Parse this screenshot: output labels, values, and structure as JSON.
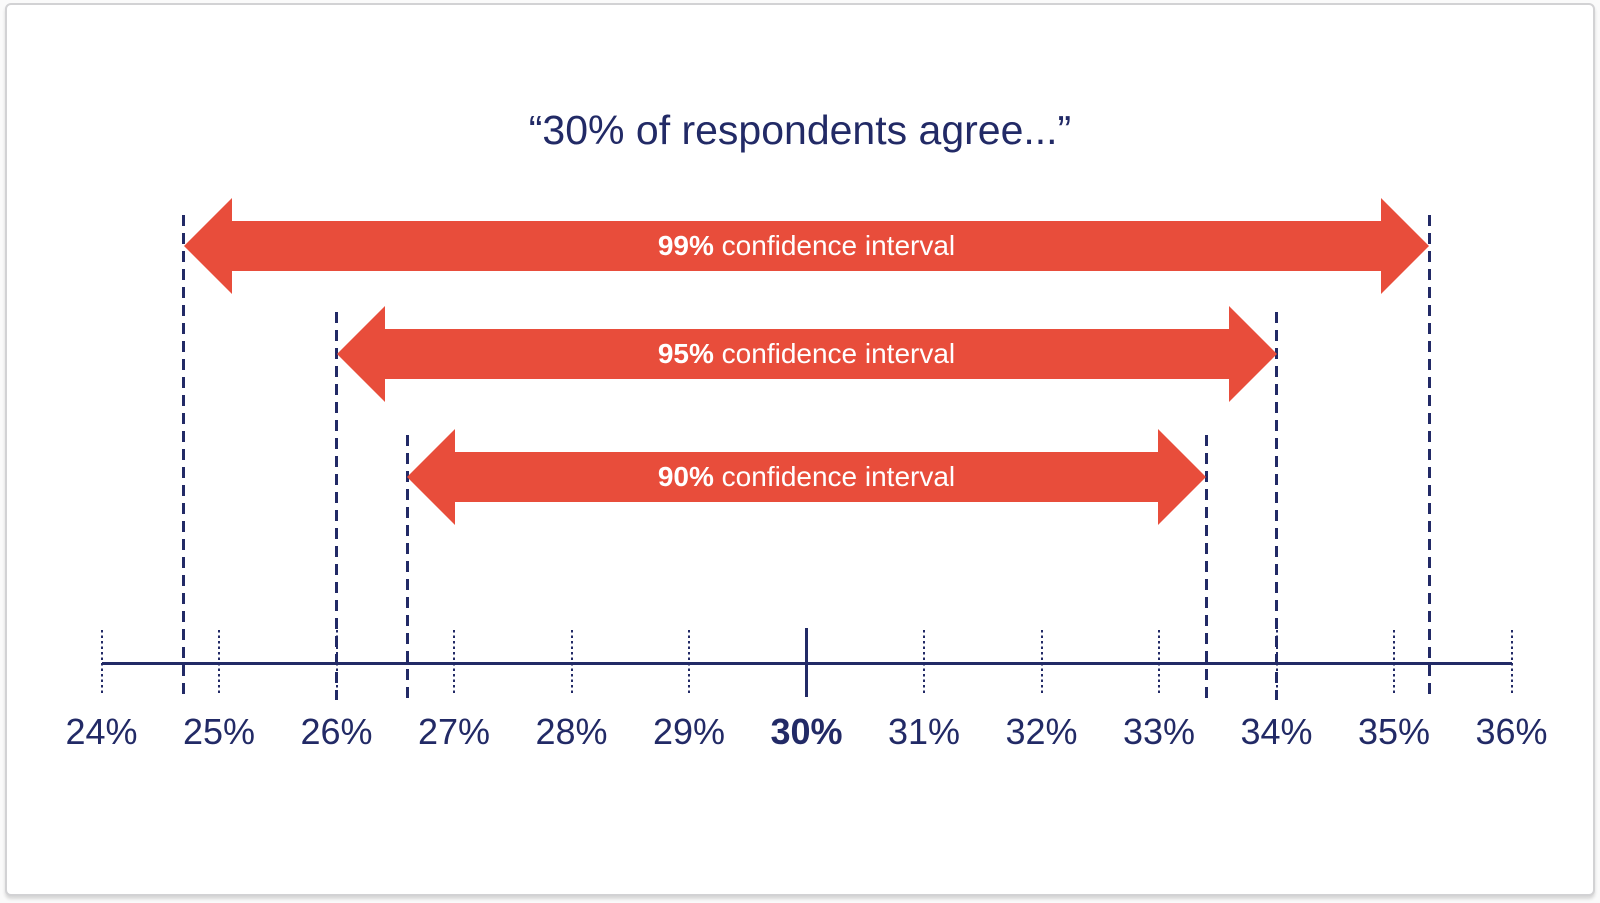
{
  "colors": {
    "navy": "#222A66",
    "red": "#E84D3B",
    "background": "#FFFFFF",
    "frame_border": "#D2D2D4",
    "arrow_text": "#FFFFFF"
  },
  "chart_data": {
    "type": "bar",
    "subtype": "horizontal-confidence-interval-ranges",
    "title": "“30% of respondents agree...”",
    "point_estimate": 30,
    "unit": "%",
    "x_axis": {
      "min": 24,
      "max": 36,
      "tick_step": 1,
      "tick_labels": [
        "24%",
        "25%",
        "26%",
        "27%",
        "28%",
        "29%",
        "30%",
        "31%",
        "32%",
        "33%",
        "34%",
        "35%",
        "36%"
      ],
      "emphasized_tick": "30%"
    },
    "series": [
      {
        "name": "99% confidence interval",
        "level": "99%",
        "label": "confidence interval",
        "low": 24.7,
        "high": 35.3
      },
      {
        "name": "95% confidence interval",
        "level": "95%",
        "label": "confidence interval",
        "low": 26.0,
        "high": 34.0
      },
      {
        "name": "90% confidence interval",
        "level": "90%",
        "label": "confidence interval",
        "low": 26.6,
        "high": 33.4
      }
    ],
    "legend": "none",
    "grid": "off",
    "boundary_line_style": "dashed",
    "tick_line_style": "dotted"
  }
}
